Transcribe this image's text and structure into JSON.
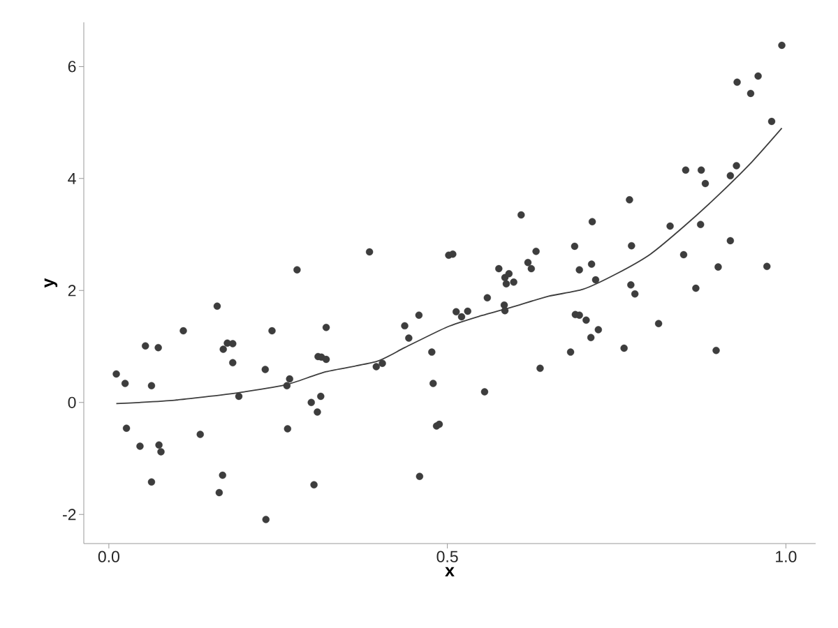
{
  "chart_data": {
    "type": "scatter",
    "xlabel": "x",
    "ylabel": "y",
    "xlim": [
      -0.037,
      1.044
    ],
    "ylim": [
      -2.52,
      6.79
    ],
    "xticks": [
      {
        "value": 0,
        "label": "0.0"
      },
      {
        "value": 0.5,
        "label": "0.5"
      },
      {
        "value": 1,
        "label": "1.0"
      }
    ],
    "yticks": [
      -2,
      0,
      2,
      4,
      6
    ],
    "grid": false,
    "series": [
      {
        "type": "scatter",
        "color": "#3d3d3d",
        "marker": "circle",
        "x": [
          0.011,
          0.024,
          0.026,
          0.046,
          0.054,
          0.063,
          0.063,
          0.073,
          0.074,
          0.077,
          0.11,
          0.135,
          0.16,
          0.163,
          0.168,
          0.169,
          0.175,
          0.183,
          0.183,
          0.192,
          0.231,
          0.232,
          0.241,
          0.263,
          0.264,
          0.267,
          0.278,
          0.299,
          0.303,
          0.308,
          0.309,
          0.314,
          0.313,
          0.321,
          0.321,
          0.385,
          0.395,
          0.404,
          0.437,
          0.443,
          0.458,
          0.459,
          0.477,
          0.479,
          0.484,
          0.488,
          0.502,
          0.508,
          0.513,
          0.521,
          0.53,
          0.555,
          0.559,
          0.576,
          0.584,
          0.585,
          0.585,
          0.587,
          0.591,
          0.598,
          0.609,
          0.619,
          0.624,
          0.631,
          0.637,
          0.682,
          0.688,
          0.689,
          0.695,
          0.695,
          0.705,
          0.712,
          0.713,
          0.714,
          0.719,
          0.723,
          0.761,
          0.769,
          0.771,
          0.772,
          0.777,
          0.812,
          0.829,
          0.849,
          0.852,
          0.867,
          0.875,
          0.874,
          0.881,
          0.897,
          0.9,
          0.918,
          0.918,
          0.927,
          0.928,
          0.948,
          0.959,
          0.972,
          0.979,
          0.994
        ],
        "values": [
          0.51,
          0.34,
          -0.46,
          -0.78,
          1.01,
          0.3,
          -1.42,
          0.98,
          -0.76,
          -0.88,
          1.28,
          -0.57,
          1.72,
          -1.61,
          -1.3,
          0.95,
          1.06,
          1.05,
          0.71,
          0.11,
          0.59,
          -2.09,
          1.28,
          0.3,
          -0.47,
          0.42,
          2.37,
          0.0,
          -1.47,
          -0.17,
          0.82,
          0.81,
          0.11,
          0.77,
          1.34,
          2.69,
          0.64,
          0.7,
          1.37,
          1.15,
          1.56,
          -1.32,
          0.9,
          0.34,
          -0.42,
          -0.39,
          2.63,
          2.65,
          1.62,
          1.53,
          1.63,
          0.19,
          1.87,
          2.39,
          1.74,
          1.64,
          2.23,
          2.12,
          2.3,
          2.15,
          3.35,
          2.5,
          2.39,
          2.7,
          0.61,
          0.9,
          2.79,
          1.57,
          1.56,
          2.37,
          1.47,
          1.16,
          2.47,
          3.23,
          2.19,
          1.3,
          0.97,
          3.62,
          2.1,
          2.8,
          1.94,
          1.41,
          3.15,
          2.64,
          4.15,
          2.04,
          4.15,
          3.18,
          3.91,
          0.93,
          2.42,
          2.89,
          4.05,
          4.23,
          5.72,
          5.52,
          5.83,
          2.43,
          5.02,
          6.38
        ]
      },
      {
        "type": "line",
        "color": "#3d3d3d",
        "marker": "none",
        "line_style": "solid",
        "x": [
          0.011,
          0.045,
          0.097,
          0.149,
          0.2,
          0.263,
          0.321,
          0.395,
          0.437,
          0.5,
          0.55,
          0.6,
          0.65,
          0.7,
          0.75,
          0.8,
          0.85,
          0.9,
          0.95,
          0.994
        ],
        "values": [
          -0.02,
          0.0,
          0.04,
          0.11,
          0.19,
          0.32,
          0.55,
          0.73,
          0.98,
          1.35,
          1.55,
          1.72,
          1.9,
          2.02,
          2.3,
          2.65,
          3.15,
          3.7,
          4.3,
          4.9
        ]
      }
    ]
  }
}
